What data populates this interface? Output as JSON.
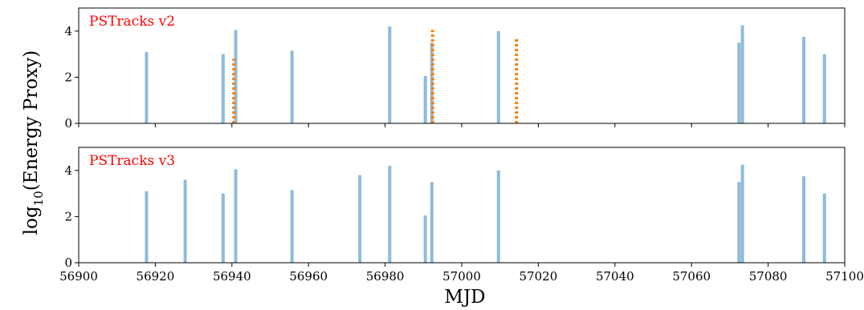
{
  "figure": {
    "xlabel": "MJD",
    "ylabel_main": "log",
    "ylabel_sub": "10",
    "ylabel_rest": "(Energy Proxy)"
  },
  "chart_data": [
    {
      "type": "bar",
      "panel_label": "PSTracks v2",
      "panel_label_color": "#ff0000",
      "panel_label_position": "top-left",
      "xlim": [
        56900,
        57100
      ],
      "ylim": [
        0,
        5
      ],
      "yticks": [
        0,
        2,
        4
      ],
      "xticks": [
        56900,
        56920,
        56940,
        56960,
        56980,
        57000,
        57020,
        57040,
        57060,
        57080,
        57100
      ],
      "xticklabels_visible": false,
      "series": [
        {
          "style": "bars",
          "color": "#8fbbd9",
          "x": [
            56917.7,
            56937.7,
            56941.0,
            56955.7,
            56981.2,
            56990.5,
            56992.2,
            57009.6,
            57072.4,
            57073.3,
            57089.3,
            57094.7
          ],
          "values": [
            3.1,
            3.0,
            4.05,
            3.15,
            4.2,
            2.05,
            3.5,
            4.0,
            3.5,
            4.25,
            3.75,
            3.0
          ]
        },
        {
          "style": "dotted-lines",
          "color": "#ff7f0e",
          "x": [
            56940.5,
            56992.4,
            57014.3
          ],
          "values": [
            2.8,
            4.05,
            3.65
          ]
        }
      ]
    },
    {
      "type": "bar",
      "panel_label": "PSTracks v3",
      "panel_label_color": "#ff0000",
      "panel_label_position": "top-left",
      "xlim": [
        56900,
        57100
      ],
      "ylim": [
        0,
        5
      ],
      "yticks": [
        0,
        2,
        4
      ],
      "xticks": [
        56900,
        56920,
        56940,
        56960,
        56980,
        57000,
        57020,
        57040,
        57060,
        57080,
        57100
      ],
      "xticklabels_visible": true,
      "series": [
        {
          "style": "bars",
          "color": "#8fbbd9",
          "x": [
            56917.7,
            56927.8,
            56937.7,
            56941.0,
            56955.7,
            56973.4,
            56981.2,
            56990.5,
            56992.2,
            57009.6,
            57072.4,
            57073.3,
            57089.3,
            57094.7
          ],
          "values": [
            3.1,
            3.6,
            3.0,
            4.05,
            3.15,
            3.8,
            4.2,
            2.05,
            3.5,
            4.0,
            3.5,
            4.25,
            3.75,
            3.0
          ]
        }
      ]
    }
  ]
}
